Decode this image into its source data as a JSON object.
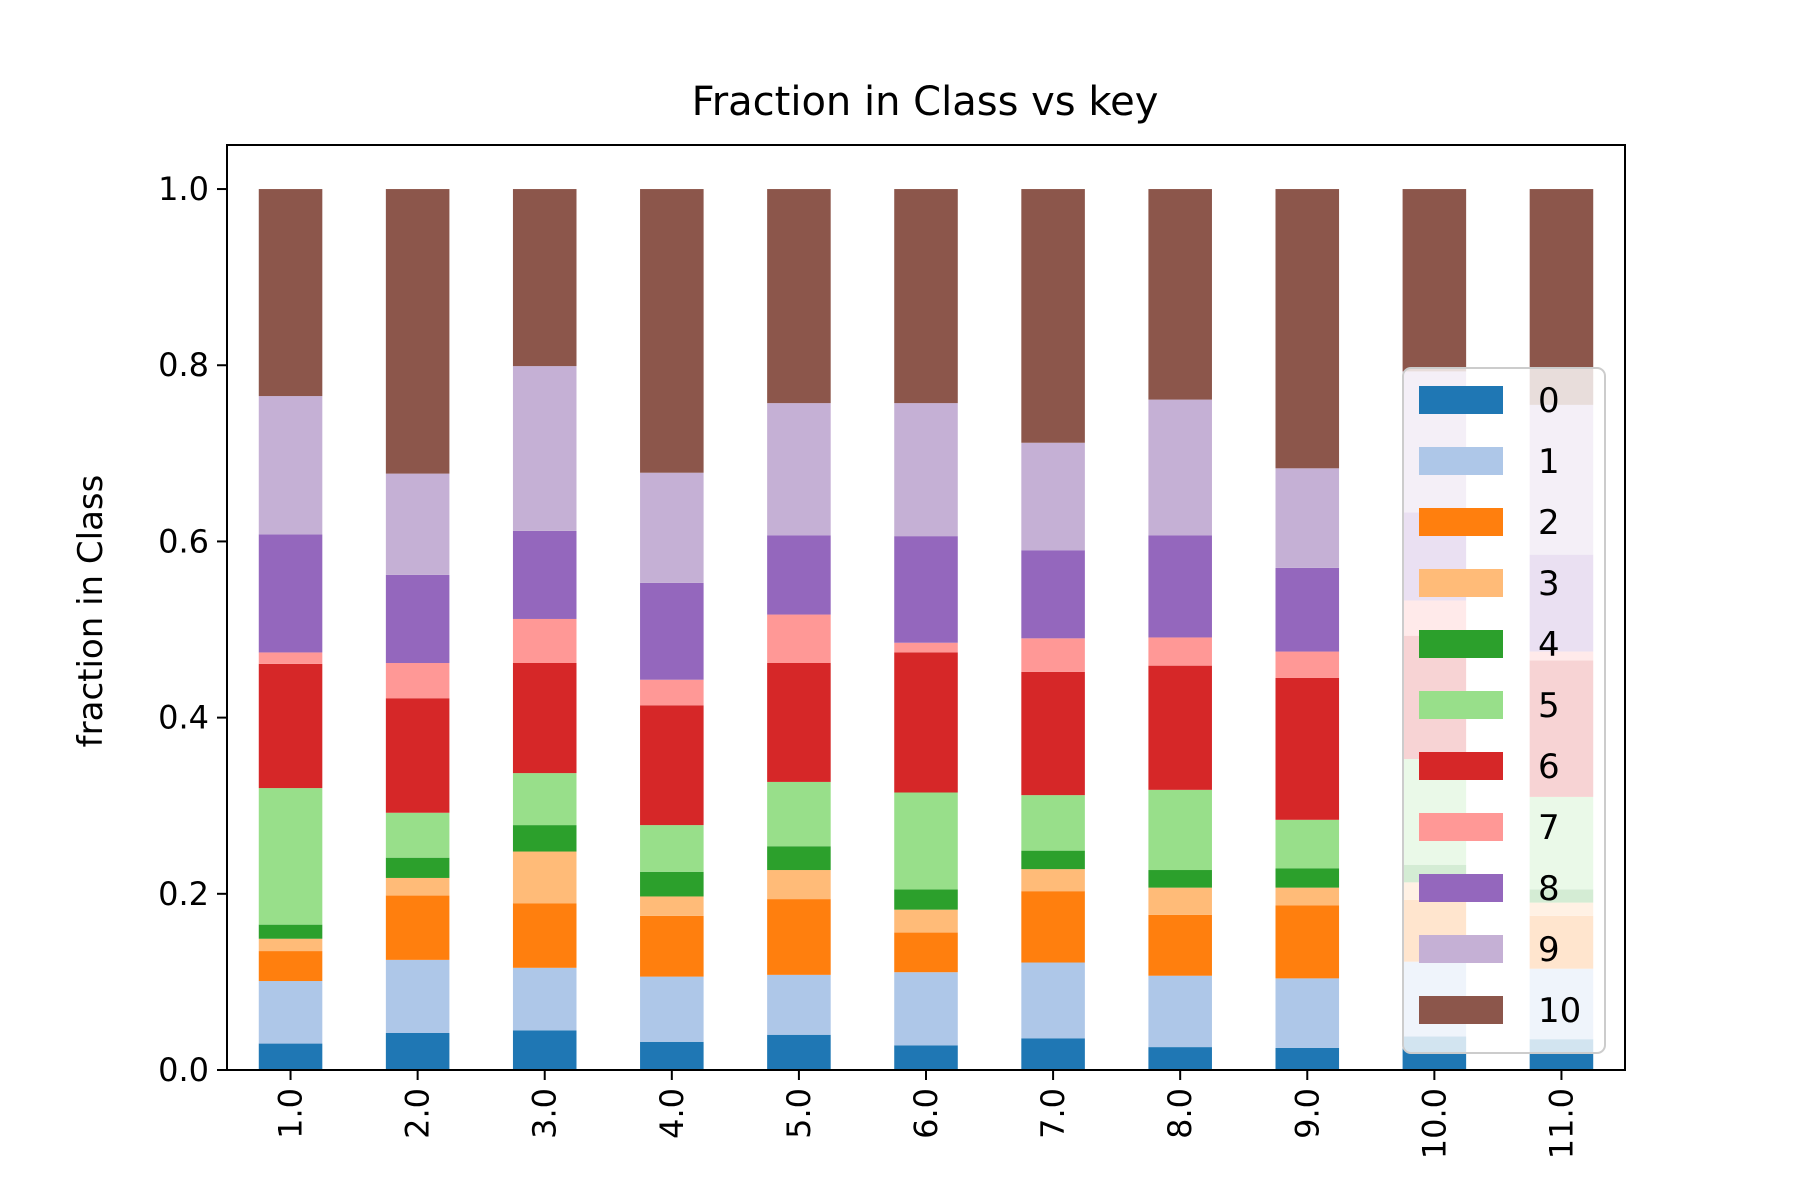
{
  "chart_data": {
    "type": "bar",
    "stacked": true,
    "title": "Fraction in Class vs key",
    "xlabel": "",
    "ylabel": "fraction in Class",
    "ylim": [
      0.0,
      1.05
    ],
    "yticks": [
      "0.0",
      "0.2",
      "0.4",
      "0.6",
      "0.8",
      "1.0"
    ],
    "categories": [
      "1.0",
      "2.0",
      "3.0",
      "4.0",
      "5.0",
      "6.0",
      "7.0",
      "8.0",
      "9.0",
      "10.0",
      "11.0"
    ],
    "legend_position": "right",
    "grid": false,
    "series": [
      {
        "name": "0",
        "color": "#1f77b4",
        "values": [
          0.03,
          0.042,
          0.045,
          0.032,
          0.04,
          0.028,
          0.036,
          0.026,
          0.025,
          0.038,
          0.035
        ]
      },
      {
        "name": "1",
        "color": "#aec7e8",
        "values": [
          0.071,
          0.083,
          0.071,
          0.074,
          0.068,
          0.083,
          0.086,
          0.081,
          0.079,
          0.085,
          0.08
        ]
      },
      {
        "name": "2",
        "color": "#ff7f0e",
        "values": [
          0.034,
          0.073,
          0.073,
          0.069,
          0.086,
          0.045,
          0.081,
          0.069,
          0.083,
          0.07,
          0.06
        ]
      },
      {
        "name": "3",
        "color": "#ffbb78",
        "values": [
          0.014,
          0.02,
          0.059,
          0.022,
          0.033,
          0.026,
          0.025,
          0.031,
          0.02,
          0.02,
          0.015
        ]
      },
      {
        "name": "4",
        "color": "#2ca02c",
        "values": [
          0.016,
          0.023,
          0.03,
          0.028,
          0.027,
          0.023,
          0.021,
          0.02,
          0.022,
          0.02,
          0.015
        ]
      },
      {
        "name": "5",
        "color": "#98df8a",
        "values": [
          0.155,
          0.051,
          0.059,
          0.053,
          0.073,
          0.11,
          0.063,
          0.091,
          0.055,
          0.12,
          0.105
        ]
      },
      {
        "name": "6",
        "color": "#d62728",
        "values": [
          0.141,
          0.13,
          0.125,
          0.136,
          0.135,
          0.159,
          0.14,
          0.141,
          0.161,
          0.14,
          0.155
        ]
      },
      {
        "name": "7",
        "color": "#ff9896",
        "values": [
          0.013,
          0.04,
          0.05,
          0.029,
          0.055,
          0.011,
          0.038,
          0.032,
          0.03,
          0.04,
          0.01
        ]
      },
      {
        "name": "8",
        "color": "#9467bd",
        "values": [
          0.134,
          0.1,
          0.1,
          0.11,
          0.09,
          0.121,
          0.1,
          0.116,
          0.095,
          0.1,
          0.11
        ]
      },
      {
        "name": "9",
        "color": "#c5b0d5",
        "values": [
          0.157,
          0.115,
          0.187,
          0.125,
          0.15,
          0.151,
          0.122,
          0.154,
          0.113,
          0.16,
          0.17
        ]
      },
      {
        "name": "10",
        "color": "#8c564b",
        "values": [
          0.235,
          0.323,
          0.201,
          0.322,
          0.243,
          0.243,
          0.288,
          0.239,
          0.317,
          0.207,
          0.245
        ]
      }
    ]
  }
}
